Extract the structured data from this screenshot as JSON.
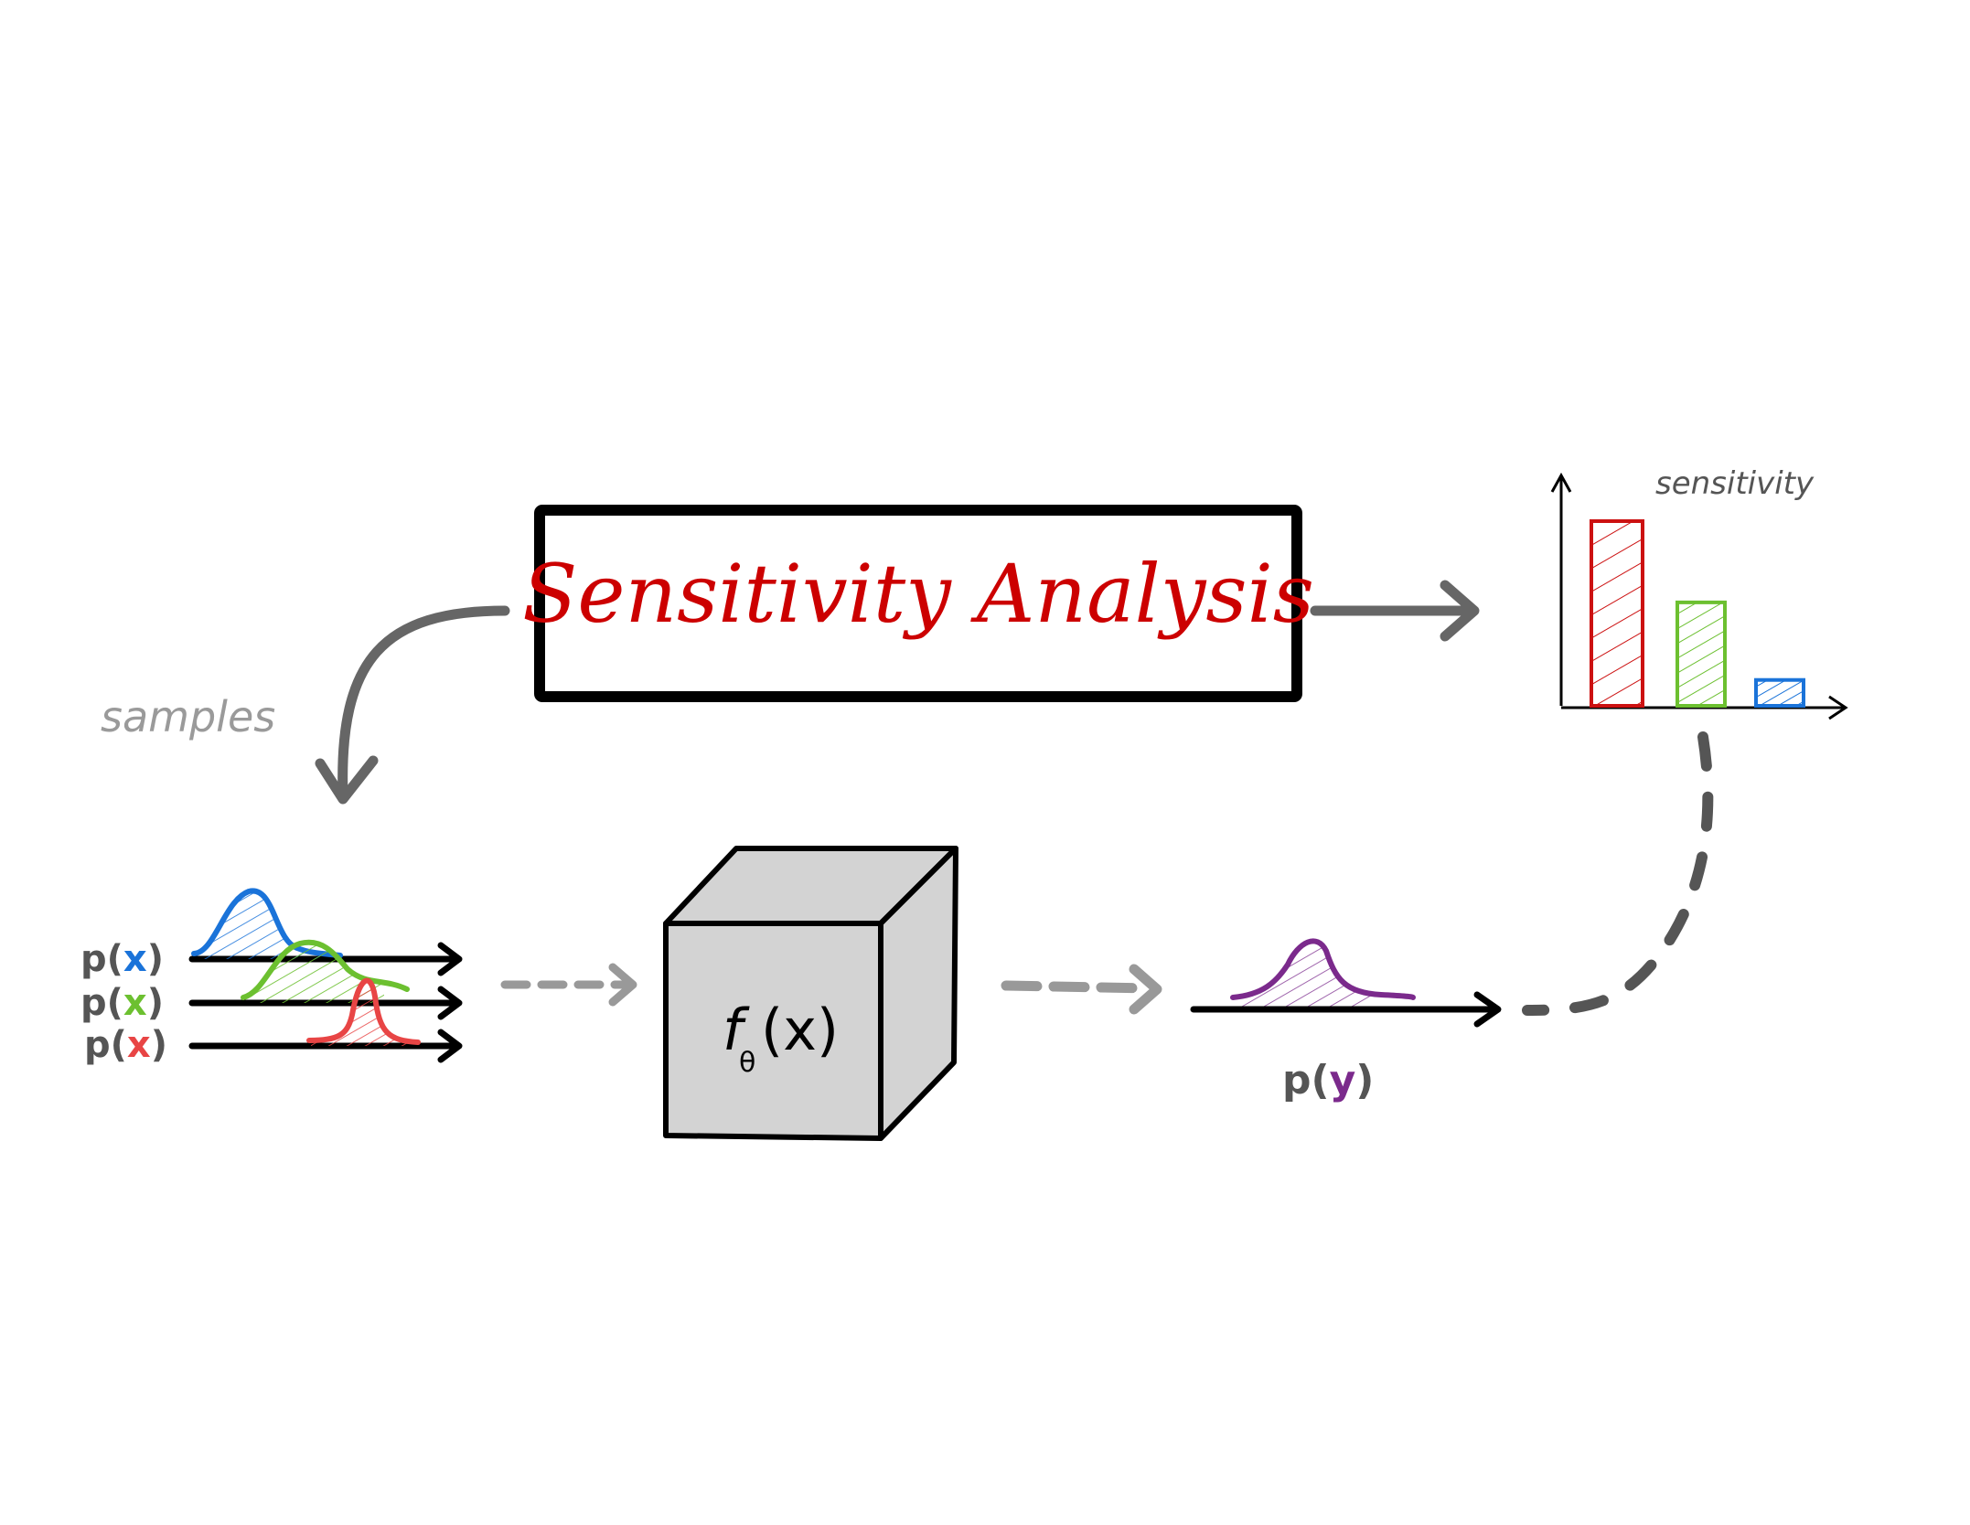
{
  "title": "Sensitivity Analysis",
  "samples_label": "samples",
  "inputs": [
    {
      "prefix": "p(",
      "var": "x",
      "suffix": ")",
      "color": "#1a73d9"
    },
    {
      "prefix": "p(",
      "var": "x",
      "suffix": ")",
      "color": "#6cc030"
    },
    {
      "prefix": "p(",
      "var": "x",
      "suffix": ")",
      "color": "#e84545"
    }
  ],
  "model": {
    "func": "f",
    "subscript": "θ",
    "arg": "(x)"
  },
  "output": {
    "prefix": "p(",
    "var": "y",
    "suffix": ")",
    "color": "#7b2a8c"
  },
  "sensitivity_chart": {
    "label": "sensitivity",
    "bars": [
      {
        "level": 1.0,
        "color": "#cc1111"
      },
      {
        "level": 0.56,
        "color": "#6cc030"
      },
      {
        "level": 0.14,
        "color": "#1a73d9"
      }
    ]
  },
  "colors": {
    "title": "#cc0000",
    "arrow": "#666666",
    "dashed_arrow": "#999999",
    "cube_face": "#d3d3d3"
  }
}
